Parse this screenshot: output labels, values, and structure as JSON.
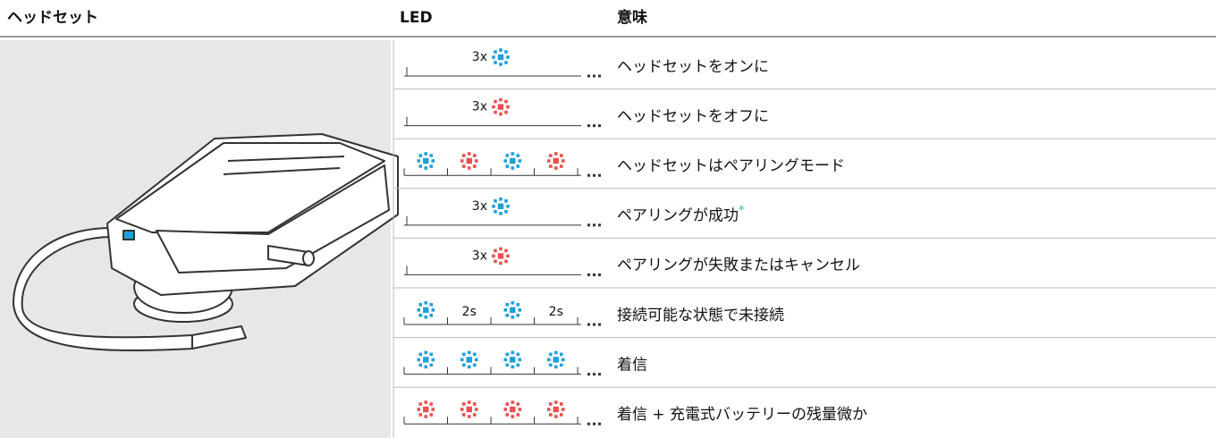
{
  "header": {
    "columns": [
      "ヘッドセット",
      "LED",
      "意味"
    ]
  },
  "rows": [
    {
      "led_label": "3x",
      "led_color": "#1ea0dc",
      "meaning": "ヘッドセットをオンに"
    },
    {
      "led_label": "3x",
      "led_color": "#e8524f",
      "meaning": "ヘッドセットをオフに"
    },
    {
      "led_sequence": [
        {
          "led": "#1ea0dc"
        },
        {
          "led": "#e8524f"
        },
        {
          "led": "#1ea0dc"
        },
        {
          "led": "#e8524f"
        }
      ],
      "meaning": "ヘッドセットはペアリングモード"
    },
    {
      "led_label": "3x",
      "led_color": "#1ea0dc",
      "meaning": "ペアリングが成功",
      "note": "*"
    },
    {
      "led_label": "3x",
      "led_color": "#e8524f",
      "meaning": "ペアリングが失敗またはキャンセル"
    },
    {
      "led_sequence": [
        {
          "led": "#1ea0dc"
        },
        {
          "text": "2s"
        },
        {
          "led": "#1ea0dc"
        },
        {
          "text": "2s"
        }
      ],
      "meaning": "接続可能な状態で未接続"
    },
    {
      "led_sequence": [
        {
          "led": "#1ea0dc"
        },
        {
          "led": "#1ea0dc"
        },
        {
          "led": "#1ea0dc"
        },
        {
          "led": "#1ea0dc"
        }
      ],
      "meaning": "着信"
    },
    {
      "led_sequence": [
        {
          "led": "#e8524f"
        },
        {
          "led": "#e8524f"
        },
        {
          "led": "#e8524f"
        },
        {
          "led": "#e8524f"
        }
      ],
      "meaning": "着信 + 充電式バッテリーの残量微か"
    }
  ]
}
